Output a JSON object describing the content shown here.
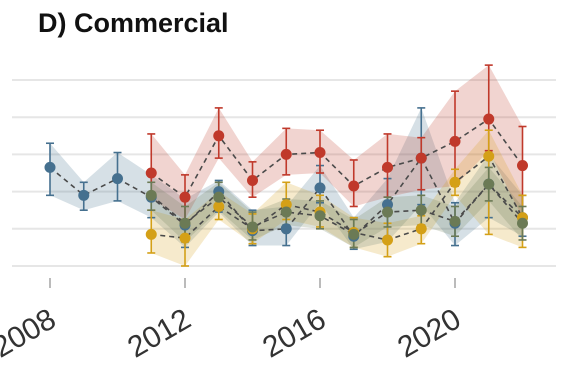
{
  "panel": {
    "title": "D) Commercial"
  },
  "chart_data": {
    "type": "line",
    "title": "D) Commercial",
    "xlabel": "",
    "ylabel": "",
    "xlim": [
      2007.6,
      2022.5
    ],
    "ylim": [
      0,
      1
    ],
    "x_ticks": [
      2008,
      2012,
      2016,
      2020
    ],
    "grid": true,
    "y_tick_labels_visible": false,
    "legend": "none",
    "series": [
      {
        "color": "#45708f",
        "x": [
          2008,
          2009,
          2010,
          2011,
          2012,
          2013,
          2014,
          2015,
          2016,
          2017,
          2018,
          2019,
          2020,
          2021,
          2022
        ],
        "y": [
          0.53,
          0.38,
          0.47,
          0.37,
          0.22,
          0.4,
          0.19,
          0.2,
          0.42,
          0.16,
          0.33,
          0.58,
          0.23,
          0.44,
          0.26
        ],
        "lower": [
          0.38,
          0.3,
          0.35,
          0.26,
          0.1,
          0.29,
          0.11,
          0.11,
          0.34,
          0.09,
          0.13,
          0.33,
          0.11,
          0.26,
          0.16
        ],
        "upper": [
          0.66,
          0.45,
          0.61,
          0.49,
          0.36,
          0.46,
          0.3,
          0.32,
          0.54,
          0.26,
          0.47,
          0.85,
          0.34,
          0.6,
          0.38
        ]
      },
      {
        "color": "#c0392b",
        "x": [
          2011,
          2012,
          2013,
          2014,
          2015,
          2016,
          2017,
          2018,
          2019,
          2020,
          2021,
          2022
        ],
        "y": [
          0.5,
          0.37,
          0.7,
          0.46,
          0.6,
          0.61,
          0.43,
          0.53,
          0.58,
          0.67,
          0.79,
          0.54
        ],
        "lower": [
          0.36,
          0.25,
          0.58,
          0.37,
          0.49,
          0.5,
          0.32,
          0.37,
          0.41,
          0.43,
          0.62,
          0.26
        ],
        "upper": [
          0.71,
          0.49,
          0.85,
          0.56,
          0.74,
          0.73,
          0.57,
          0.71,
          0.69,
          0.94,
          1.08,
          0.75
        ]
      },
      {
        "color": "#d4a017",
        "x": [
          2011,
          2012,
          2013,
          2014,
          2015,
          2016,
          2017,
          2018,
          2019,
          2020,
          2021,
          2022
        ],
        "y": [
          0.17,
          0.15,
          0.32,
          0.2,
          0.33,
          0.29,
          0.18,
          0.14,
          0.2,
          0.45,
          0.59,
          0.26
        ],
        "lower": [
          0.07,
          0.0,
          0.25,
          0.12,
          0.25,
          0.21,
          0.1,
          0.05,
          0.12,
          0.38,
          0.17,
          0.1
        ],
        "upper": [
          0.3,
          0.25,
          0.4,
          0.28,
          0.45,
          0.38,
          0.26,
          0.23,
          0.27,
          0.52,
          0.73,
          0.38
        ]
      },
      {
        "color": "#6b7a55",
        "x": [
          2011,
          2012,
          2013,
          2014,
          2015,
          2016,
          2017,
          2018,
          2019,
          2020,
          2021,
          2022
        ],
        "y": [
          0.38,
          0.23,
          0.37,
          0.21,
          0.29,
          0.27,
          0.17,
          0.29,
          0.3,
          0.24,
          0.44,
          0.23
        ],
        "lower": [
          0.3,
          0.13,
          0.3,
          0.14,
          0.22,
          0.2,
          0.1,
          0.21,
          0.22,
          0.16,
          0.35,
          0.14
        ],
        "upper": [
          0.45,
          0.32,
          0.45,
          0.29,
          0.36,
          0.35,
          0.25,
          0.37,
          0.38,
          0.32,
          0.53,
          0.32
        ]
      }
    ]
  }
}
